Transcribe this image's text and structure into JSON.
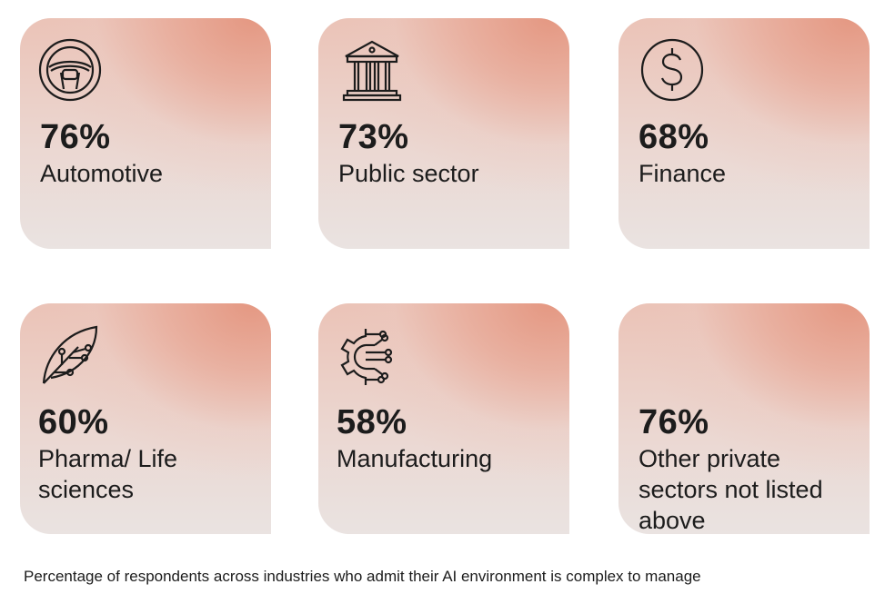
{
  "cards": [
    {
      "percent": "76%",
      "label": "Automotive",
      "icon": "steering-wheel-icon"
    },
    {
      "percent": "73%",
      "label": "Public sector",
      "icon": "bank-building-icon"
    },
    {
      "percent": "68%",
      "label": "Finance",
      "icon": "dollar-coin-icon"
    },
    {
      "percent": "60%",
      "label": "Pharma/ Life sciences",
      "icon": "leaf-circuit-icon"
    },
    {
      "percent": "58%",
      "label": "Manufacturing",
      "icon": "gear-circuit-icon"
    },
    {
      "percent": "76%",
      "label": "Other private sectors not listed above",
      "icon": "none"
    }
  ],
  "caption": "Percentage of respondents across industries who admit their AI environment is complex to manage",
  "colors": {
    "card_gradient_top": "#e49680",
    "card_gradient_bottom": "#eae3e1",
    "text": "#1c1c1c"
  }
}
